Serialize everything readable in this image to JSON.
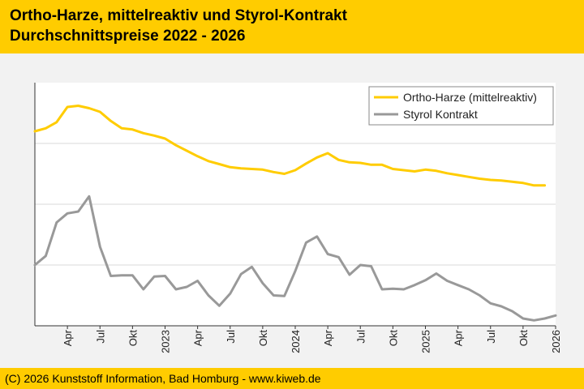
{
  "header": {
    "title_line1": "Ortho-Harze, mittelreaktiv und Styrol-Kontrakt",
    "title_line2": "Durchschnittspreise 2022 - 2026"
  },
  "footer": {
    "copyright": "(C) 2026 Kunststoff Information, Bad Homburg - www.kiweb.de"
  },
  "colors": {
    "accent": "#ffcc00",
    "ortho": "#ffcc00",
    "styrol": "#999999",
    "grid": "#d9d9d9"
  },
  "chart_data": {
    "type": "line",
    "title": "Ortho-Harze, mittelreaktiv und Styrol-Kontrakt",
    "subtitle": "Durchschnittspreise 2022 - 2026",
    "xlabel": "",
    "ylabel": "",
    "x_range": [
      0,
      48
    ],
    "ylim": [
      0,
      4
    ],
    "grid": true,
    "legend": "top-right",
    "x_ticks": [
      {
        "x": 3,
        "label": "Apr"
      },
      {
        "x": 6,
        "label": "Jul"
      },
      {
        "x": 9,
        "label": "Okt"
      },
      {
        "x": 12,
        "label": "2023"
      },
      {
        "x": 15,
        "label": "Apr"
      },
      {
        "x": 18,
        "label": "Jul"
      },
      {
        "x": 21,
        "label": "Okt"
      },
      {
        "x": 24,
        "label": "2024"
      },
      {
        "x": 27,
        "label": "Apr"
      },
      {
        "x": 30,
        "label": "Jul"
      },
      {
        "x": 33,
        "label": "Okt"
      },
      {
        "x": 36,
        "label": "2025"
      },
      {
        "x": 39,
        "label": "Apr"
      },
      {
        "x": 42,
        "label": "Jul"
      },
      {
        "x": 45,
        "label": "Okt"
      },
      {
        "x": 48,
        "label": "2026"
      }
    ],
    "series": [
      {
        "name": "Ortho-Harze (mittelreaktiv)",
        "color": "#ffcc00",
        "x": [
          0,
          1,
          2,
          3,
          4,
          5,
          6,
          7,
          8,
          9,
          10,
          11,
          12,
          13,
          14,
          15,
          16,
          17,
          18,
          19,
          20,
          21,
          22,
          23,
          24,
          25,
          26,
          27,
          28,
          29,
          30,
          31,
          32,
          33,
          34,
          35,
          36,
          37,
          38,
          39,
          40,
          41,
          42,
          43,
          44,
          45,
          46,
          47
        ],
        "values": [
          3.2,
          3.25,
          3.35,
          3.6,
          3.62,
          3.58,
          3.52,
          3.37,
          3.25,
          3.23,
          3.17,
          3.13,
          3.08,
          2.97,
          2.88,
          2.79,
          2.71,
          2.66,
          2.61,
          2.59,
          2.58,
          2.57,
          2.53,
          2.5,
          2.56,
          2.67,
          2.77,
          2.84,
          2.73,
          2.69,
          2.68,
          2.65,
          2.65,
          2.58,
          2.56,
          2.54,
          2.57,
          2.55,
          2.51,
          2.48,
          2.45,
          2.42,
          2.4,
          2.39,
          2.37,
          2.35,
          2.31,
          2.31
        ]
      },
      {
        "name": "Styrol Kontrakt",
        "color": "#999999",
        "x": [
          0,
          1,
          2,
          3,
          4,
          5,
          6,
          7,
          8,
          9,
          10,
          11,
          12,
          13,
          14,
          15,
          16,
          17,
          18,
          19,
          20,
          21,
          22,
          23,
          24,
          25,
          26,
          27,
          28,
          29,
          30,
          31,
          32,
          33,
          34,
          35,
          36,
          37,
          38,
          39,
          40,
          41,
          42,
          43,
          44,
          45,
          46,
          47,
          48
        ],
        "values": [
          1.0,
          1.15,
          1.7,
          1.85,
          1.88,
          2.13,
          1.3,
          0.82,
          0.83,
          0.83,
          0.6,
          0.81,
          0.82,
          0.6,
          0.64,
          0.74,
          0.5,
          0.33,
          0.53,
          0.85,
          0.97,
          0.7,
          0.5,
          0.49,
          0.9,
          1.37,
          1.47,
          1.18,
          1.13,
          0.84,
          1.0,
          0.98,
          0.6,
          0.61,
          0.6,
          0.67,
          0.75,
          0.86,
          0.74,
          0.67,
          0.6,
          0.5,
          0.37,
          0.32,
          0.24,
          0.12,
          0.09,
          0.12,
          0.17
        ]
      }
    ]
  }
}
